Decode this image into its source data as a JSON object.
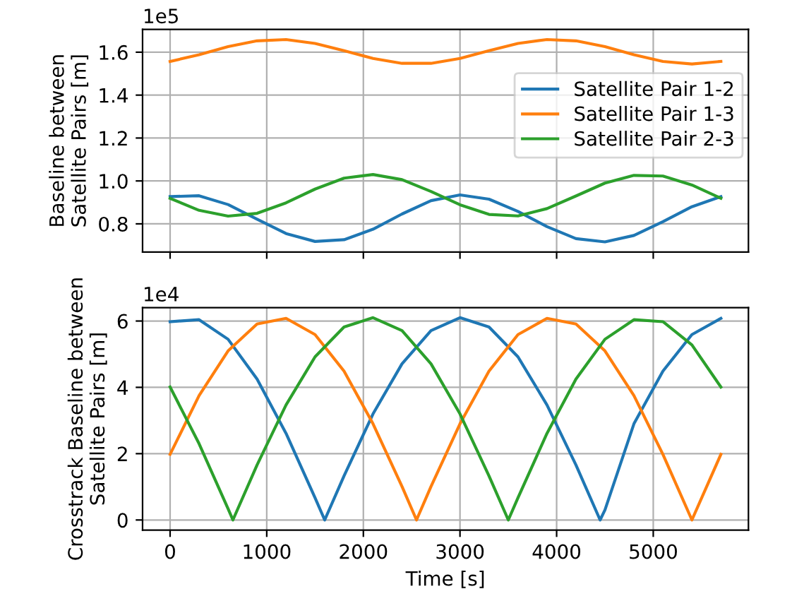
{
  "chart_data": [
    {
      "type": "line",
      "ylabel": "Baseline between\nSatellite Pairs [m]",
      "annotations": [
        "1e5"
      ],
      "legend": "top right",
      "grid": true,
      "tick_labels": "y",
      "xlim": [
        -285,
        5985
      ],
      "xticks": [
        0,
        1000,
        2000,
        3000,
        4000,
        5000
      ],
      "ylim": [
        0.669,
        1.706
      ],
      "yticks": [
        0.8,
        {
          "value": 1.0,
          "label": "1.0"
        },
        1.2,
        1.4,
        1.6
      ],
      "x": [
        0,
        300,
        600,
        900,
        1200,
        1500,
        1800,
        2100,
        2400,
        2700,
        3000,
        3300,
        3600,
        3900,
        4200,
        4500,
        4800,
        5100,
        5400,
        5700
      ],
      "series": [
        {
          "name": "Satellite Pair 1-2",
          "color": "#1f77b4",
          "values": [
            0.927,
            0.931,
            0.89,
            0.822,
            0.755,
            0.718,
            0.726,
            0.775,
            0.846,
            0.908,
            0.935,
            0.915,
            0.858,
            0.787,
            0.731,
            0.716,
            0.746,
            0.81,
            0.88,
            0.927
          ]
        },
        {
          "name": "Satellite Pair 1-3",
          "color": "#ff7f0e",
          "values": [
            1.557,
            1.588,
            1.626,
            1.653,
            1.659,
            1.641,
            1.607,
            1.571,
            1.548,
            1.548,
            1.571,
            1.607,
            1.641,
            1.659,
            1.653,
            1.626,
            1.588,
            1.557,
            1.545,
            1.557
          ]
        },
        {
          "name": "Satellite Pair 2-3",
          "color": "#2ca02c",
          "values": [
            0.919,
            0.863,
            0.836,
            0.849,
            0.898,
            0.962,
            1.013,
            1.03,
            1.006,
            0.951,
            0.889,
            0.844,
            0.837,
            0.871,
            0.93,
            0.99,
            1.026,
            1.023,
            0.981,
            0.919
          ]
        }
      ]
    },
    {
      "type": "line",
      "xlabel": "Time [s]",
      "ylabel": "Crosstrack Baseline between\nSatellite Pairs [m]",
      "annotations": [
        "1e4"
      ],
      "grid": true,
      "xlim": [
        -285,
        5985
      ],
      "xticks": [
        0,
        1000,
        2000,
        3000,
        4000,
        5000
      ],
      "ylim": [
        -0.305,
        6.405
      ],
      "yticks": [
        0,
        2,
        4,
        6
      ],
      "series": [
        {
          "color": "#1f77b4",
          "x": [
            0,
            300,
            600,
            900,
            1200,
            1500,
            1600,
            1800,
            2100,
            2400,
            2700,
            3000,
            3300,
            3600,
            3900,
            4200,
            4450,
            4500,
            4800,
            5100,
            5400,
            5700
          ],
          "values": [
            5.98,
            6.04,
            5.45,
            4.25,
            2.61,
            0.67,
            0,
            1.33,
            3.2,
            4.71,
            5.71,
            6.1,
            5.82,
            4.92,
            3.47,
            1.66,
            0,
            0.3,
            2.9,
            4.49,
            5.59,
            6.08
          ]
        },
        {
          "color": "#ff7f0e",
          "x": [
            0,
            300,
            600,
            900,
            1200,
            1500,
            1800,
            2100,
            2400,
            2550,
            2700,
            3000,
            3300,
            3600,
            3900,
            4200,
            4500,
            4800,
            5100,
            5400,
            5700
          ],
          "values": [
            1.98,
            3.75,
            5.1,
            5.91,
            6.08,
            5.59,
            4.49,
            2.9,
            1.01,
            0,
            1.01,
            2.9,
            4.49,
            5.59,
            6.08,
            5.91,
            5.1,
            3.75,
            1.98,
            0,
            1.98
          ]
        },
        {
          "color": "#2ca02c",
          "x": [
            0,
            300,
            600,
            650,
            900,
            1200,
            1500,
            1800,
            2100,
            2400,
            2700,
            3000,
            3300,
            3500,
            3600,
            3900,
            4200,
            4500,
            4800,
            5100,
            5400,
            5700
          ],
          "values": [
            4.01,
            2.3,
            0.34,
            0,
            1.66,
            3.47,
            4.92,
            5.82,
            6.1,
            5.71,
            4.71,
            3.2,
            1.33,
            0,
            0.67,
            2.61,
            4.25,
            5.45,
            6.04,
            5.98,
            5.28,
            4.01
          ]
        }
      ]
    }
  ]
}
